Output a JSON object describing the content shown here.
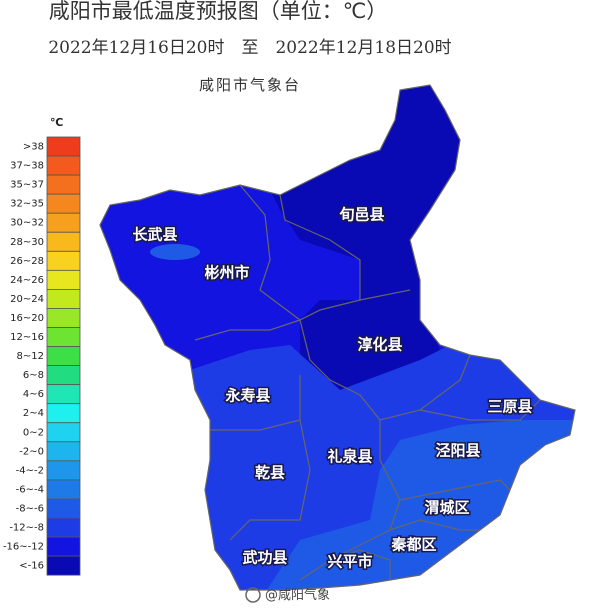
{
  "header": {
    "title": "咸阳市最低温度预报图（单位：℃）",
    "subtitle": "2022年12月16日20时　至　2022年12月18日20时",
    "agency": "咸阳市气象台"
  },
  "legend": {
    "unit": "℃",
    "items": [
      {
        "label": ">38",
        "color": "#f03c1e"
      },
      {
        "label": "37~38",
        "color": "#f25a1e"
      },
      {
        "label": "35~37",
        "color": "#f4701e"
      },
      {
        "label": "32~35",
        "color": "#f5871e"
      },
      {
        "label": "30~32",
        "color": "#f7a01e"
      },
      {
        "label": "28~30",
        "color": "#f8b81e"
      },
      {
        "label": "26~28",
        "color": "#f8d21e"
      },
      {
        "label": "24~26",
        "color": "#e8e61e"
      },
      {
        "label": "20~24",
        "color": "#c2e81e"
      },
      {
        "label": "16~20",
        "color": "#9ae628"
      },
      {
        "label": "12~16",
        "color": "#6ee432"
      },
      {
        "label": "8~12",
        "color": "#3ce046"
      },
      {
        "label": "6~8",
        "color": "#22dc82"
      },
      {
        "label": "4~6",
        "color": "#1ee6b4"
      },
      {
        "label": "2~4",
        "color": "#1ef0f0"
      },
      {
        "label": "0~2",
        "color": "#1ed2f0"
      },
      {
        "label": "-2~0",
        "color": "#1eb4f0"
      },
      {
        "label": "-4~-2",
        "color": "#1e96eb"
      },
      {
        "label": "-6~-4",
        "color": "#1e7ae6"
      },
      {
        "label": "-8~-6",
        "color": "#1e5ae6"
      },
      {
        "label": "-12~-8",
        "color": "#1e3ce6"
      },
      {
        "label": "-16~-12",
        "color": "#1414e0"
      },
      {
        "label": "<-16",
        "color": "#0a0ab4"
      }
    ]
  },
  "counties": [
    "旬邑县",
    "长武县",
    "彬州市",
    "淳化县",
    "永寿县",
    "三原县",
    "礼泉县",
    "泾阳县",
    "乾县",
    "渭城区",
    "秦都区",
    "武功县",
    "兴平市"
  ],
  "watermark": "@咸阳气象"
}
